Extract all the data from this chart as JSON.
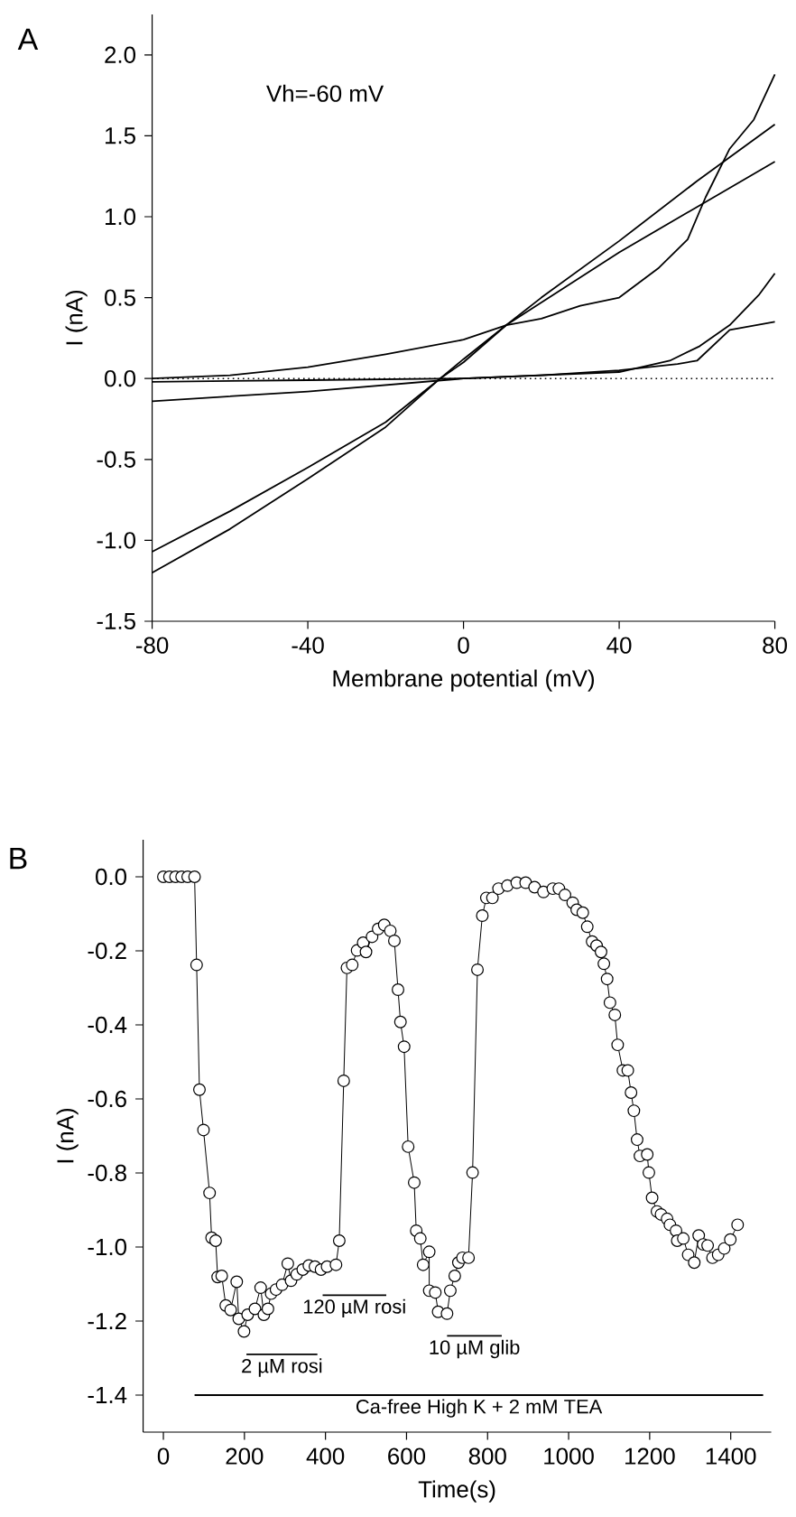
{
  "chart_data": [
    {
      "type": "line",
      "title": "A",
      "xlabel": "Membrane potential (mV)",
      "ylabel": "I (nA)",
      "annotations": [
        "Vh=-60 mV"
      ],
      "xlim": [
        -80,
        80
      ],
      "ylim": [
        -1.5,
        2.25
      ],
      "xticks": [
        -80,
        -40,
        0,
        40,
        80
      ],
      "yticks": [
        {
          "value": 2,
          "label": "2.0"
        },
        1.5,
        {
          "value": 1,
          "label": "1.0"
        },
        0.5,
        {
          "value": 0,
          "label": "0.0"
        },
        -0.5,
        {
          "value": -1,
          "label": "-1.0"
        },
        -1.5
      ],
      "marker": "none",
      "line_style": "solid",
      "ref_lines": [
        {
          "axis": "y",
          "value": 0,
          "line_style": "dotted"
        }
      ],
      "series": [
        {
          "color": "#000000",
          "x": [
            -80,
            -60,
            -40,
            -20,
            -6,
            0,
            11,
            20,
            40,
            60,
            80
          ],
          "values": [
            -1.07,
            -0.82,
            -0.55,
            -0.27,
            0,
            0.12,
            0.33,
            0.5,
            0.85,
            1.22,
            1.57
          ]
        },
        {
          "color": "#000000",
          "x": [
            -80,
            -60,
            -40,
            -20,
            -6,
            0,
            11,
            20,
            40,
            60,
            80
          ],
          "values": [
            -1.2,
            -0.93,
            -0.62,
            -0.3,
            0,
            0.1,
            0.33,
            0.47,
            0.78,
            1.06,
            1.34
          ]
        },
        {
          "color": "#000000",
          "x": [
            -80,
            -60,
            -40,
            -20,
            0,
            11,
            20,
            30,
            40,
            50,
            57.6,
            62.2,
            68.4,
            74.6,
            80
          ],
          "values": [
            0,
            0.02,
            0.07,
            0.15,
            0.24,
            0.33,
            0.37,
            0.45,
            0.5,
            0.68,
            0.86,
            1.12,
            1.42,
            1.6,
            1.88
          ]
        },
        {
          "color": "#000000",
          "x": [
            -80,
            -40,
            0,
            40,
            53,
            60.7,
            68.4,
            76,
            80
          ],
          "values": [
            -0.02,
            -0.01,
            0,
            0.04,
            0.11,
            0.2,
            0.33,
            0.52,
            0.65
          ]
        },
        {
          "color": "#000000",
          "x": [
            -80,
            -40,
            0,
            20,
            40,
            55,
            60,
            68.4,
            80
          ],
          "values": [
            -0.14,
            -0.08,
            0,
            0.02,
            0.05,
            0.09,
            0.11,
            0.3,
            0.35
          ]
        }
      ]
    },
    {
      "type": "line",
      "title": "B",
      "xlabel": "Time(s)",
      "ylabel": "I (nA)",
      "xlim": [
        -50,
        1500
      ],
      "ylim": [
        -1.5,
        0.1
      ],
      "xticks": [
        0,
        200,
        400,
        600,
        800,
        1000,
        1200,
        1400
      ],
      "yticks": [
        {
          "value": 0,
          "label": "0.0"
        },
        -0.2,
        -0.4,
        -0.6,
        -0.8,
        {
          "value": -1,
          "label": "-1.0"
        },
        -1.2,
        -1.4
      ],
      "marker": "circle",
      "line_style": "solid",
      "series": [
        {
          "type": "line",
          "marker": "none",
          "name": "2 µM rosi",
          "color": "#000000",
          "x": [
            205,
            380
          ],
          "values": [
            -1.29,
            -1.29
          ]
        },
        {
          "type": "line",
          "marker": "none",
          "name": "120 µM rosi",
          "color": "#000000",
          "x": [
            393,
            550
          ],
          "values": [
            -1.13,
            -1.13
          ]
        },
        {
          "type": "line",
          "marker": "none",
          "name": "10 µM glib",
          "color": "#000000",
          "x": [
            700,
            835
          ],
          "values": [
            -1.24,
            -1.24
          ]
        },
        {
          "type": "line",
          "marker": "none",
          "name": "Ca-free High K + 2 mM TEA",
          "color": "#000000",
          "x": [
            77,
            1480
          ],
          "values": [
            -1.4,
            -1.4
          ]
        },
        {
          "color": "#000000",
          "x": [
            0,
            15,
            30,
            45,
            60,
            77,
            82,
            89,
            99,
            114,
            119,
            129,
            134,
            144,
            154,
            166,
            181,
            186,
            199,
            208,
            226,
            240,
            248,
            258,
            266,
            278,
            293,
            307,
            315,
            329,
            344,
            359,
            374,
            389,
            404,
            426,
            434,
            445,
            453,
            466,
            478,
            493,
            500,
            515,
            530,
            545,
            560,
            570,
            579,
            585,
            594,
            604,
            619,
            624,
            634,
            641,
            656,
            656,
            671,
            678,
            700,
            708,
            719,
            728,
            738,
            753,
            763,
            775,
            787,
            797,
            812,
            827,
            849,
            872,
            894,
            916,
            938,
            961,
            976,
            991,
            1010,
            1020,
            1035,
            1046,
            1058,
            1069,
            1080,
            1087,
            1095,
            1102,
            1114,
            1121,
            1134,
            1146,
            1154,
            1161,
            1169,
            1176,
            1194,
            1198,
            1206,
            1218,
            1228,
            1243,
            1250,
            1265,
            1268,
            1283,
            1295,
            1310,
            1321,
            1332,
            1343,
            1355,
            1369,
            1384,
            1399,
            1417
          ],
          "values": [
            0,
            0,
            0,
            0,
            0,
            0,
            -0.238,
            -0.575,
            -0.684,
            -0.854,
            -0.975,
            -0.983,
            -1.081,
            -1.078,
            -1.158,
            -1.17,
            -1.094,
            -1.194,
            -1.228,
            -1.183,
            -1.167,
            -1.11,
            -1.183,
            -1.167,
            -1.126,
            -1.115,
            -1.102,
            -1.045,
            -1.091,
            -1.074,
            -1.061,
            -1.05,
            -1.053,
            -1.061,
            -1.053,
            -1.048,
            -0.983,
            -0.551,
            -0.246,
            -0.238,
            -0.199,
            -0.178,
            -0.203,
            -0.162,
            -0.141,
            -0.13,
            -0.146,
            -0.173,
            -0.305,
            -0.392,
            -0.459,
            -0.729,
            -0.826,
            -0.956,
            -0.977,
            -1.048,
            -1.013,
            -1.118,
            -1.123,
            -1.175,
            -1.18,
            -1.118,
            -1.078,
            -1.042,
            -1.029,
            -1.029,
            -0.799,
            -0.251,
            -0.105,
            -0.057,
            -0.057,
            -0.032,
            -0.024,
            -0.016,
            -0.016,
            -0.028,
            -0.041,
            -0.032,
            -0.032,
            -0.049,
            -0.07,
            -0.089,
            -0.097,
            -0.135,
            -0.175,
            -0.186,
            -0.203,
            -0.235,
            -0.276,
            -0.34,
            -0.373,
            -0.454,
            -0.523,
            -0.523,
            -0.583,
            -0.632,
            -0.71,
            -0.754,
            -0.75,
            -0.799,
            -0.867,
            -0.904,
            -0.912,
            -0.924,
            -0.94,
            -0.956,
            -0.983,
            -0.977,
            -1.021,
            -1.042,
            -0.969,
            -0.993,
            -0.996,
            -1.029,
            -1.021,
            -1.004,
            -0.98,
            -0.94
          ]
        }
      ]
    }
  ]
}
